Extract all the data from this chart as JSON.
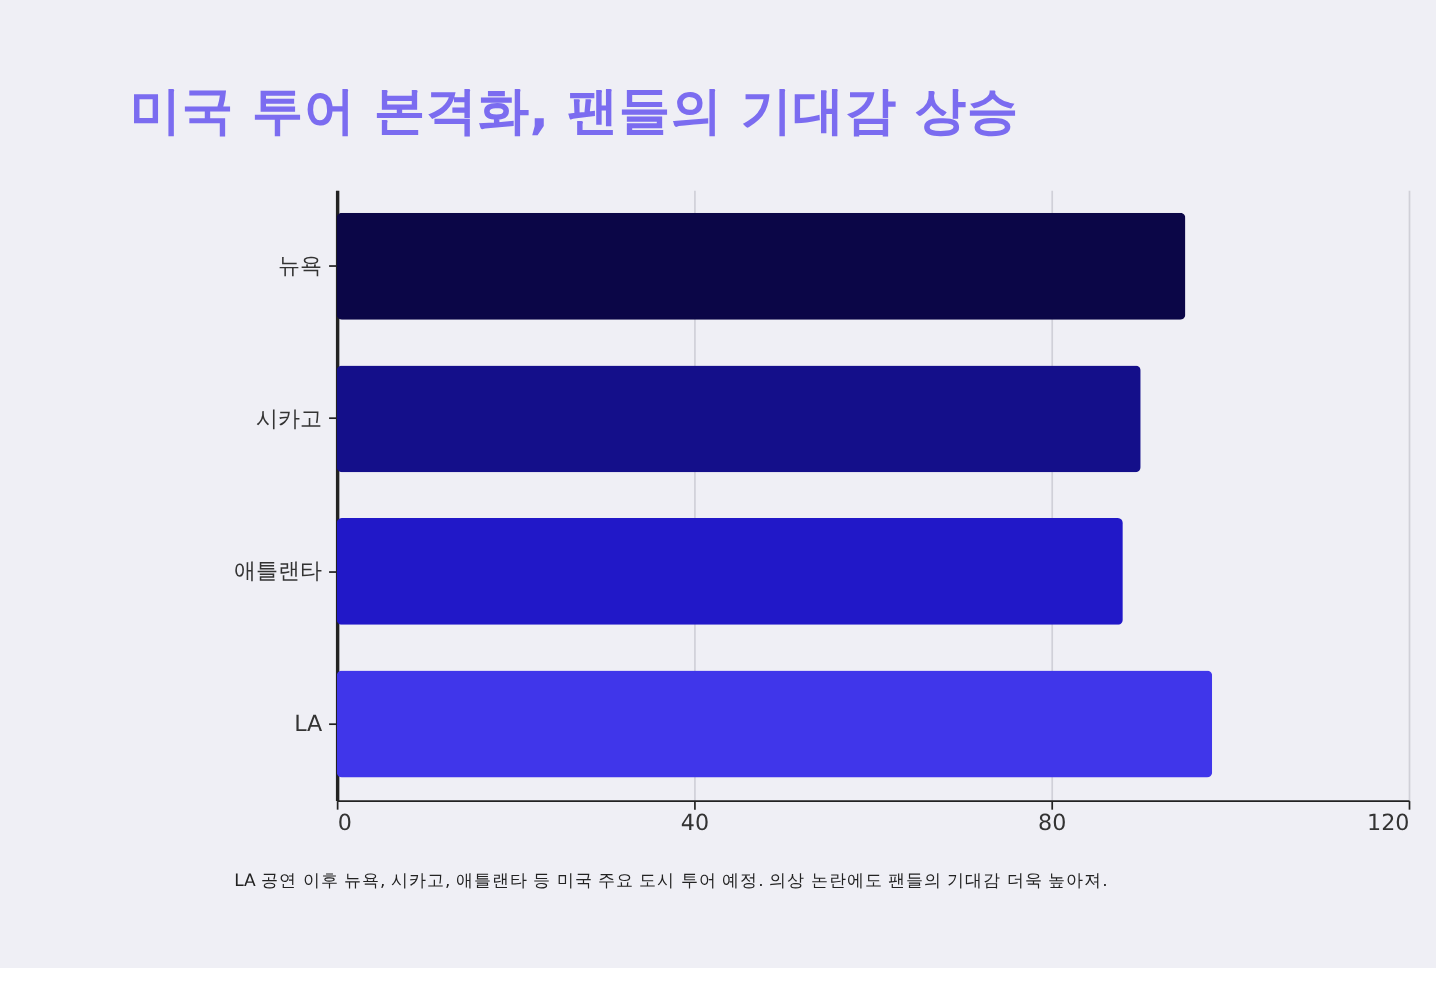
{
  "chart_data": {
    "type": "bar",
    "orientation": "horizontal",
    "title": "미국 투어 본격화, 팬들의 기대감 상승",
    "categories": [
      "뉴욕",
      "시카고",
      "애틀랜타",
      "LA"
    ],
    "values": [
      95,
      90,
      88,
      98
    ],
    "colors": [
      "#0b0647",
      "#140f8a",
      "#2118c8",
      "#4036ea"
    ],
    "xlim": [
      0,
      120
    ],
    "xticks": [
      0,
      40,
      80,
      120
    ],
    "grid": "x",
    "annotations": [
      "LA 공연 이후 뉴욕, 시카고, 애틀랜타 등 미국 주요 도시 투어 예정. 의상 논란에도 팬들의 기대감 더욱 높아져."
    ]
  }
}
